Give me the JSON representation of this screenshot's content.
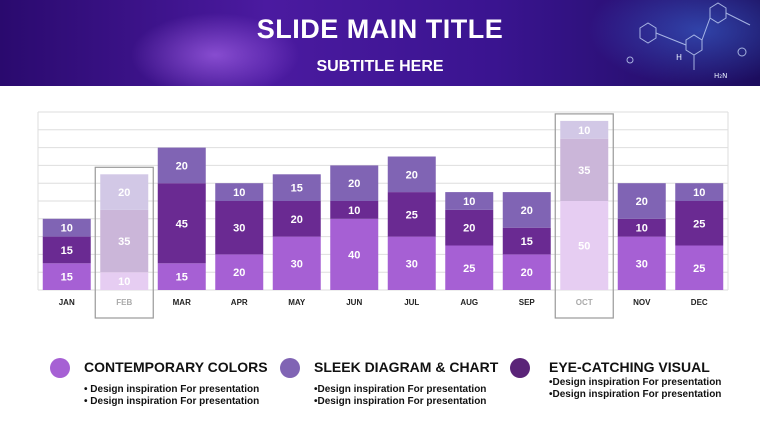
{
  "header": {
    "title": "SLIDE MAIN TITLE",
    "subtitle": "SUBTITLE HERE"
  },
  "colors": {
    "banner_dark": "#2a0a6e",
    "bottom_segment": "#a660d4",
    "middle_segment": "#6a2a92",
    "top_segment": "#8064b4",
    "highlight_box": "#999999"
  },
  "chart_data": {
    "type": "bar",
    "stacked": true,
    "categories": [
      "JAN",
      "FEB",
      "MAR",
      "APR",
      "MAY",
      "JUN",
      "JUL",
      "AUG",
      "SEP",
      "OCT",
      "NOV",
      "DEC"
    ],
    "series": [
      {
        "values": [
          15,
          10,
          15,
          20,
          30,
          40,
          30,
          25,
          20,
          50,
          30,
          25
        ]
      },
      {
        "values": [
          15,
          35,
          45,
          30,
          20,
          10,
          25,
          20,
          15,
          35,
          10,
          25
        ]
      },
      {
        "values": [
          10,
          20,
          20,
          10,
          15,
          20,
          20,
          10,
          20,
          10,
          20,
          10
        ]
      }
    ],
    "highlighted_categories": [
      "FEB",
      "OCT"
    ],
    "ylim": [
      0,
      100
    ],
    "grid": true,
    "legend": "bottom"
  },
  "legend": [
    {
      "title": "CONTEMPORARY COLORS",
      "color": "#a660d4",
      "lines": [
        "• Design inspiration For presentation",
        "• Design inspiration For presentation"
      ]
    },
    {
      "title": "SLEEK DIAGRAM & CHART",
      "color": "#8064b4",
      "lines": [
        "•Design inspiration For presentation",
        "•Design inspiration For presentation"
      ]
    },
    {
      "title": "EYE-CATCHING VISUAL",
      "color": "#5a2478",
      "lines": [
        "•Design inspiration For presentation",
        "•Design inspiration For presentation"
      ]
    }
  ]
}
